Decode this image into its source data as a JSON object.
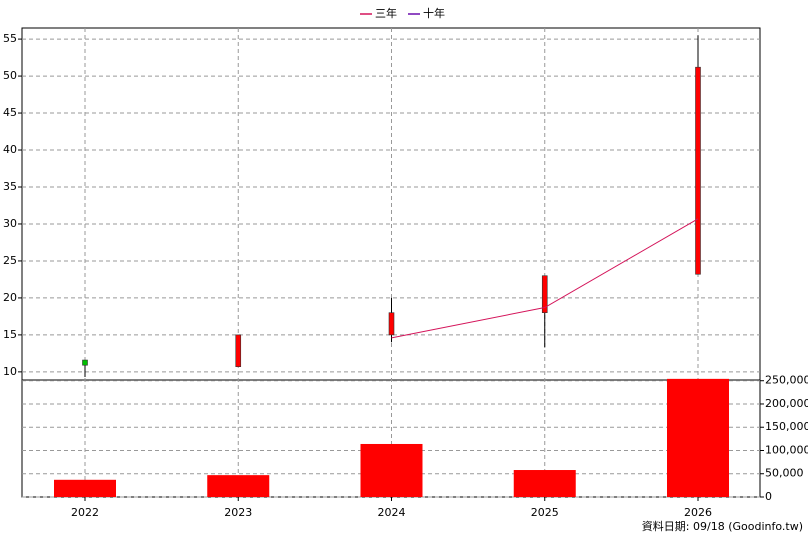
{
  "chart_data": {
    "type": "candlestick",
    "categories": [
      "2022",
      "2023",
      "2024",
      "2025",
      "2026"
    ],
    "open": [
      11.6,
      10.7,
      15,
      18,
      23.2
    ],
    "high": [
      11.6,
      15,
      20,
      23,
      55.5
    ],
    "low": [
      9.3,
      10.7,
      14,
      13.3,
      23.2
    ],
    "close": [
      10.9,
      15,
      18,
      23,
      51.2
    ],
    "up_color": "#ff0000",
    "down_color": "#00c000",
    "ylim": [
      8.9,
      56.5
    ],
    "yticks": [
      10,
      15,
      20,
      25,
      30,
      35,
      40,
      45,
      50,
      55
    ],
    "series": [
      {
        "name": "三年",
        "color": "#d4145a",
        "values": [
          null,
          null,
          14.6,
          18.7,
          30.7
        ]
      },
      {
        "name": "十年",
        "color": "#6a0dad",
        "values": [
          null,
          null,
          null,
          null,
          null
        ]
      }
    ],
    "volume": {
      "color": "#ff0000",
      "values": [
        37000,
        47000,
        114000,
        58000,
        254000
      ]
    },
    "y2lim": [
      0,
      258000
    ],
    "y2ticks": [
      0,
      {
        "value": 50000,
        "label": "50,000"
      },
      {
        "value": 100000,
        "label": "100,000"
      },
      {
        "value": 150000,
        "label": "150,000"
      },
      {
        "value": 200000,
        "label": "200,000"
      },
      {
        "value": 250000,
        "label": "250,000"
      }
    ],
    "grid": true
  },
  "footer": "資料日期: 09/18  (Goodinfo.tw)"
}
